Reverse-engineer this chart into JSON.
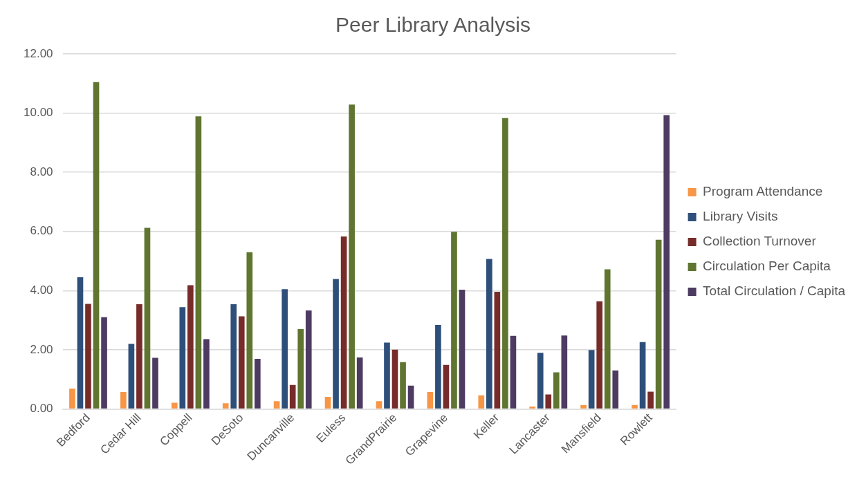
{
  "chart_data": {
    "type": "bar",
    "title": "Peer Library Analysis",
    "categories": [
      "Bedford",
      "Cedar Hill",
      "Coppell",
      "DeSoto",
      "Duncanville",
      "Euless",
      "GrandPrairie",
      "Grapevine",
      "Keller",
      "Lancaster",
      "Mansfield",
      "Rowlett"
    ],
    "series": [
      {
        "name": "Program Attendance",
        "color": "#f79646",
        "values": [
          0.69,
          0.57,
          0.21,
          0.19,
          0.26,
          0.41,
          0.26,
          0.57,
          0.46,
          0.08,
          0.13,
          0.13
        ]
      },
      {
        "name": "Library Visits",
        "color": "#2e4f7a",
        "values": [
          4.45,
          2.2,
          3.44,
          3.54,
          4.05,
          4.39,
          2.24,
          2.84,
          5.07,
          1.9,
          1.99,
          2.26
        ]
      },
      {
        "name": "Collection Turnover",
        "color": "#772c2a",
        "values": [
          3.55,
          3.54,
          4.18,
          3.13,
          0.81,
          5.83,
          2.0,
          1.49,
          3.96,
          0.49,
          3.64,
          0.58
        ]
      },
      {
        "name": "Circulation Per Capita",
        "color": "#5f7530",
        "values": [
          11.05,
          6.12,
          9.89,
          5.3,
          2.7,
          10.29,
          1.58,
          5.99,
          9.83,
          1.24,
          4.72,
          5.72
        ]
      },
      {
        "name": "Total Circulation / Capita",
        "color": "#4d3b62",
        "values": [
          3.1,
          1.73,
          2.36,
          1.69,
          3.33,
          1.74,
          0.79,
          4.03,
          2.47,
          2.48,
          1.3,
          9.93
        ]
      }
    ],
    "ylim": [
      0,
      12
    ],
    "yticks": [
      {
        "value": 0,
        "label": "0.00"
      },
      {
        "value": 2,
        "label": "2.00"
      },
      {
        "value": 4,
        "label": "4.00"
      },
      {
        "value": 6,
        "label": "6.00"
      },
      {
        "value": 8,
        "label": "8.00"
      },
      {
        "value": 10,
        "label": "10.00"
      },
      {
        "value": 12,
        "label": "12.00"
      }
    ],
    "grid": "y",
    "legend": "right"
  }
}
